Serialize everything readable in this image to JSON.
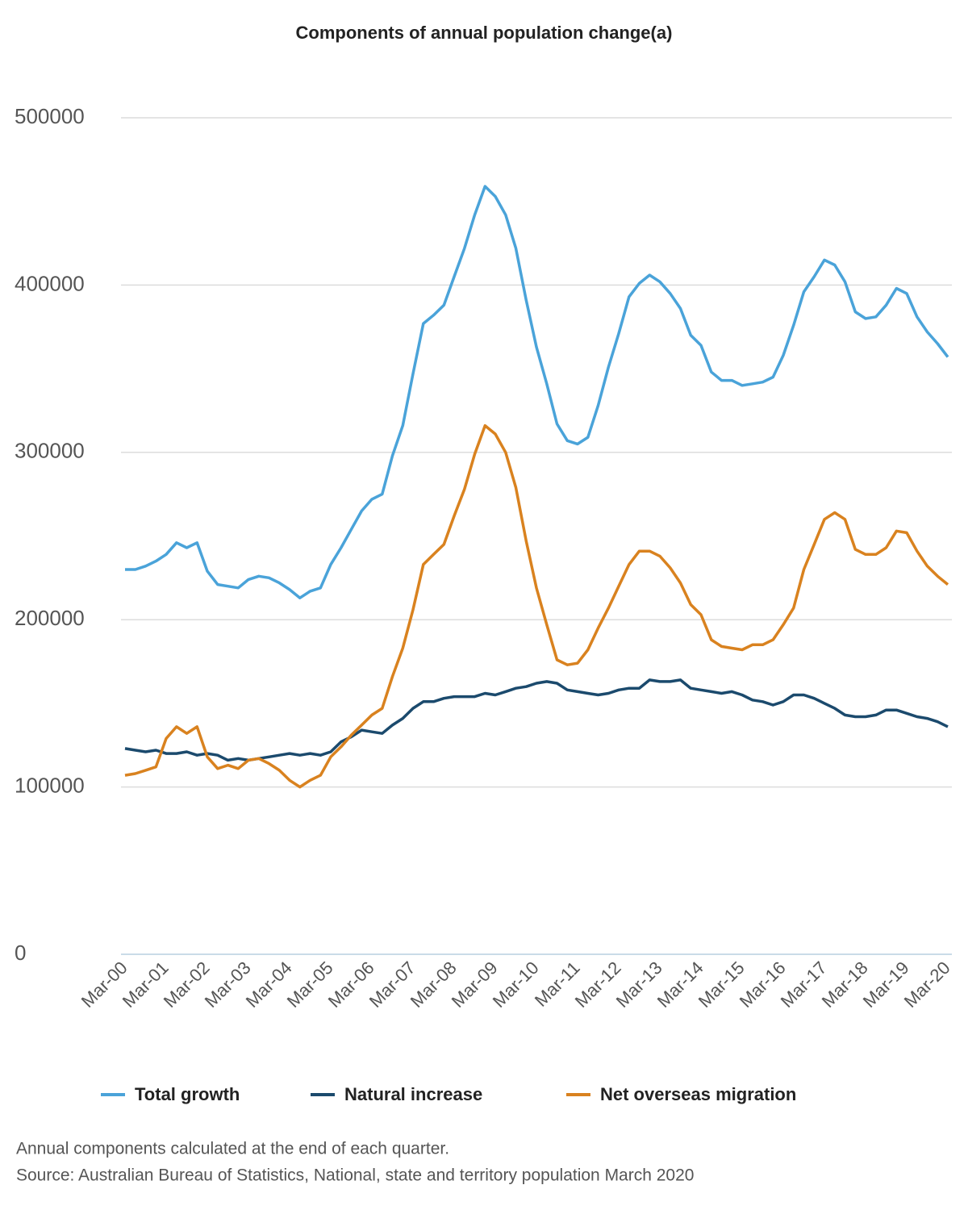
{
  "chart_data": {
    "type": "line",
    "title": "Components of annual population change(a)",
    "categories": [
      "Mar-00",
      null,
      null,
      null,
      "Mar-01",
      null,
      null,
      null,
      "Mar-02",
      null,
      null,
      null,
      "Mar-03",
      null,
      null,
      null,
      "Mar-04",
      null,
      null,
      null,
      "Mar-05",
      null,
      null,
      null,
      "Mar-06",
      null,
      null,
      null,
      "Mar-07",
      null,
      null,
      null,
      "Mar-08",
      null,
      null,
      null,
      "Mar-09",
      null,
      null,
      null,
      "Mar-10",
      null,
      null,
      null,
      "Mar-11",
      null,
      null,
      null,
      "Mar-12",
      null,
      null,
      null,
      "Mar-13",
      null,
      null,
      null,
      "Mar-14",
      null,
      null,
      null,
      "Mar-15",
      null,
      null,
      null,
      "Mar-16",
      null,
      null,
      null,
      "Mar-17",
      null,
      null,
      null,
      "Mar-18",
      null,
      null,
      null,
      "Mar-19",
      null,
      null,
      null,
      "Mar-20"
    ],
    "series": [
      {
        "name": "Total growth",
        "color": "#4aa3d9",
        "values": [
          230000,
          230000,
          232000,
          235000,
          239000,
          246000,
          243000,
          246000,
          229000,
          221000,
          220000,
          219000,
          224000,
          226000,
          225000,
          222000,
          218000,
          213000,
          217000,
          219000,
          233000,
          243000,
          254000,
          265000,
          272000,
          275000,
          298000,
          316000,
          347000,
          377000,
          382000,
          388000,
          405000,
          422000,
          442000,
          459000,
          453000,
          442000,
          422000,
          391000,
          363000,
          341000,
          317000,
          307000,
          305000,
          309000,
          328000,
          351000,
          371000,
          393000,
          401000,
          406000,
          402000,
          395000,
          386000,
          370000,
          364000,
          348000,
          343000,
          343000,
          340000,
          341000,
          342000,
          345000,
          358000,
          376000,
          396000,
          405000,
          415000,
          412000,
          402000,
          384000,
          380000,
          381000,
          388000,
          398000,
          395000,
          381000,
          372000,
          365000,
          357000
        ]
      },
      {
        "name": "Natural increase",
        "color": "#1b4a6d",
        "values": [
          123000,
          122000,
          121000,
          122000,
          120000,
          120000,
          121000,
          119000,
          120000,
          119000,
          116000,
          117000,
          116000,
          117000,
          118000,
          119000,
          120000,
          119000,
          120000,
          119000,
          121000,
          127000,
          130000,
          134000,
          133000,
          132000,
          137000,
          141000,
          147000,
          151000,
          151000,
          153000,
          154000,
          154000,
          154000,
          156000,
          155000,
          157000,
          159000,
          160000,
          162000,
          163000,
          162000,
          158000,
          157000,
          156000,
          155000,
          156000,
          158000,
          159000,
          159000,
          164000,
          163000,
          163000,
          164000,
          159000,
          158000,
          157000,
          156000,
          157000,
          155000,
          152000,
          151000,
          149000,
          151000,
          155000,
          155000,
          153000,
          150000,
          147000,
          143000,
          142000,
          142000,
          143000,
          146000,
          146000,
          144000,
          142000,
          141000,
          139000,
          136000
        ]
      },
      {
        "name": "Net overseas migration",
        "color": "#d9821f",
        "values": [
          107000,
          108000,
          110000,
          112000,
          129000,
          136000,
          132000,
          136000,
          118000,
          111000,
          113000,
          111000,
          116000,
          117000,
          114000,
          110000,
          104000,
          100000,
          104000,
          107000,
          118000,
          124000,
          131000,
          137000,
          143000,
          147000,
          166000,
          183000,
          206000,
          233000,
          239000,
          245000,
          262000,
          278000,
          299000,
          316000,
          311000,
          300000,
          279000,
          247000,
          219000,
          197000,
          176000,
          173000,
          174000,
          182000,
          195000,
          207000,
          220000,
          233000,
          241000,
          241000,
          238000,
          231000,
          222000,
          209000,
          203000,
          188000,
          184000,
          183000,
          182000,
          185000,
          185000,
          188000,
          197000,
          207000,
          230000,
          245000,
          260000,
          264000,
          260000,
          242000,
          239000,
          239000,
          243000,
          253000,
          252000,
          241000,
          232000,
          226000,
          221000
        ]
      }
    ],
    "ylim": [
      0,
      500000
    ],
    "yticks": [
      0,
      100000,
      200000,
      300000,
      400000,
      500000
    ],
    "grid": true,
    "legend": "bottom",
    "notes": [
      "Annual components calculated at the end of each quarter.",
      "Source: Australian Bureau of Statistics, National, state and territory population March 2020"
    ]
  }
}
